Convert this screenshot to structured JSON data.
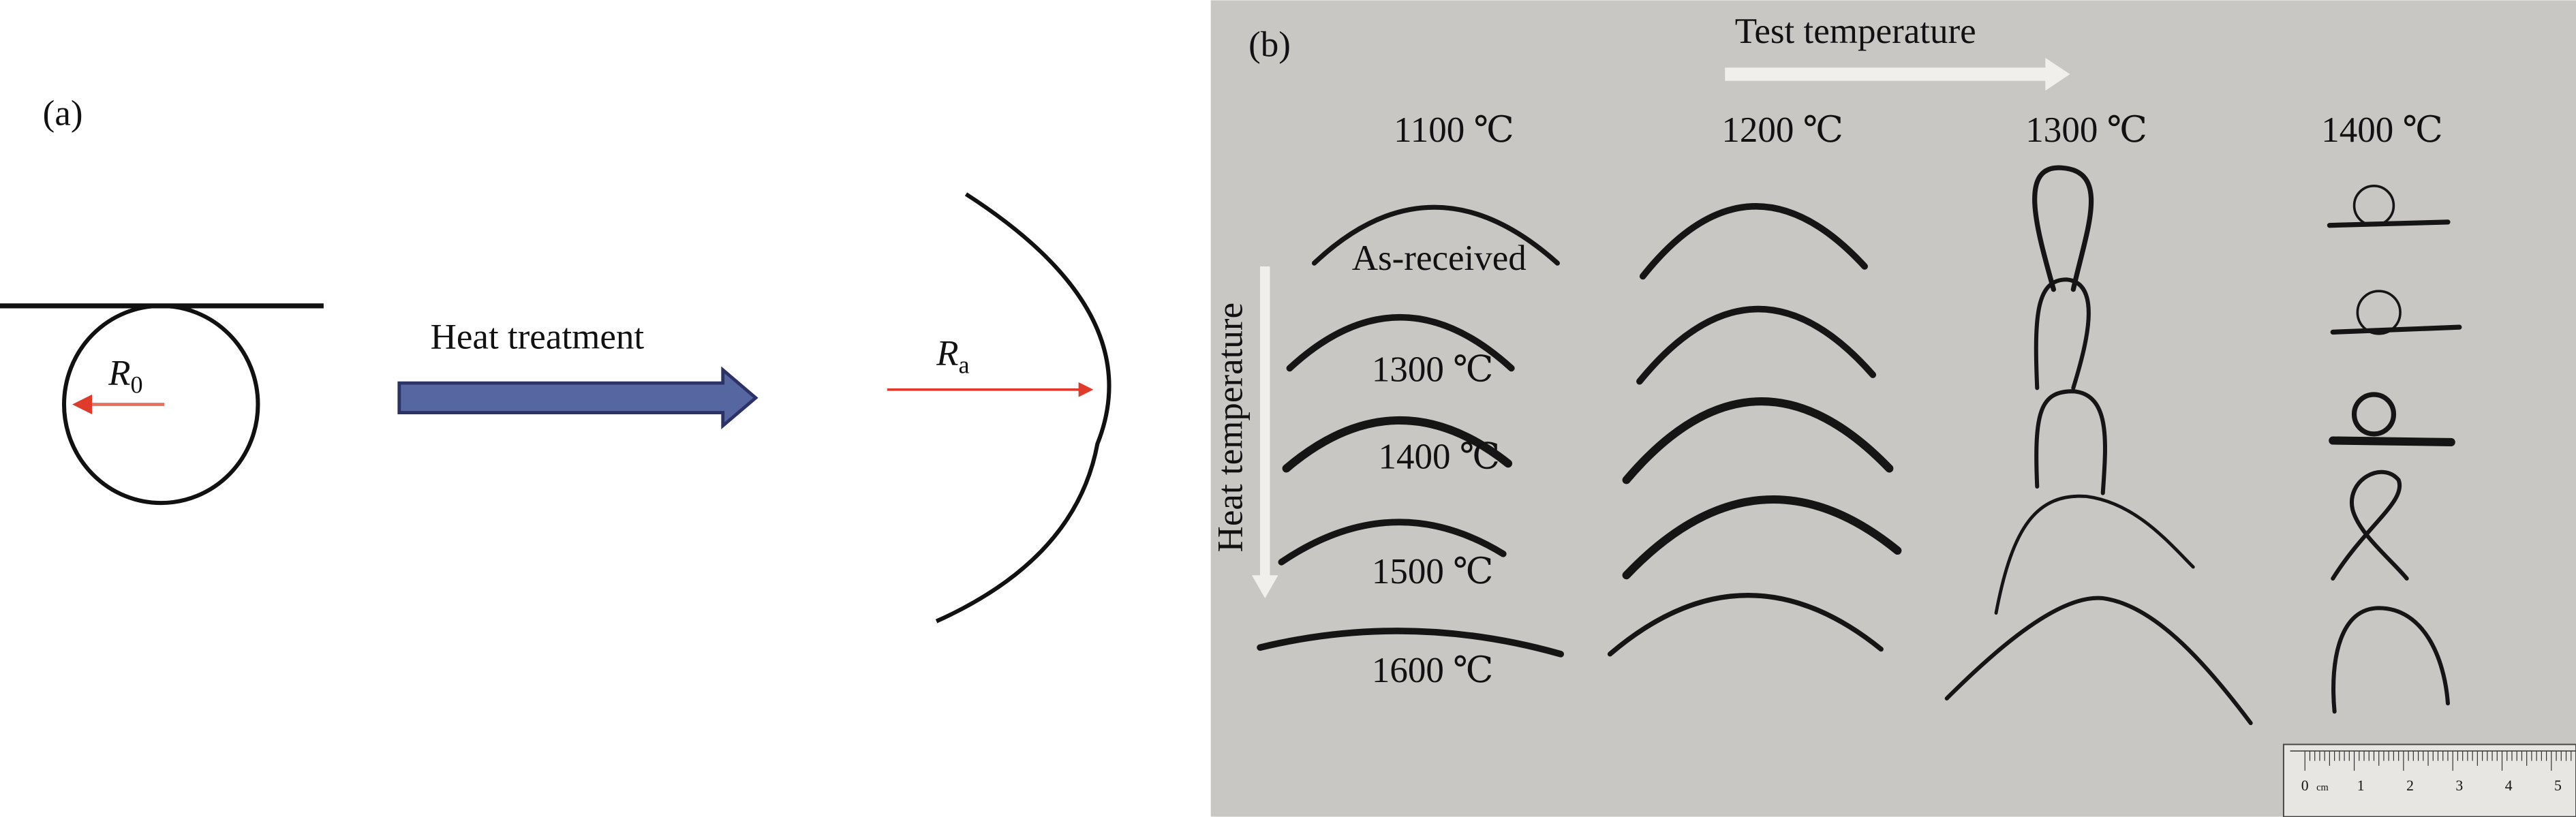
{
  "panel_a": {
    "label": "(a)",
    "arrow_label": "Heat treatment",
    "r0": {
      "symbol": "R",
      "subscript": "0"
    },
    "ra": {
      "symbol": "R",
      "subscript": "a"
    },
    "colors": {
      "radius_arrow": "#e03a2a",
      "process_arrow": "#5566a0",
      "process_arrow_edge": "#2b3266"
    }
  },
  "panel_b": {
    "label": "(b)",
    "test_axis_label": "Test temperature",
    "heat_axis_label": "Heat temperature",
    "test_temperatures": [
      "1100 ℃",
      "1200 ℃",
      "1300 ℃",
      "1400 ℃"
    ],
    "heat_treatments": [
      "As-received",
      "1300 ℃",
      "1400 ℃",
      "1500 ℃",
      "1600 ℃"
    ],
    "ruler": {
      "unit": "cm",
      "ticks": [
        "0",
        "1",
        "2",
        "3",
        "4",
        "5"
      ]
    },
    "colors": {
      "background": "#c8c7c4",
      "arrow": "#f1efec",
      "fiber": "#151515"
    }
  }
}
